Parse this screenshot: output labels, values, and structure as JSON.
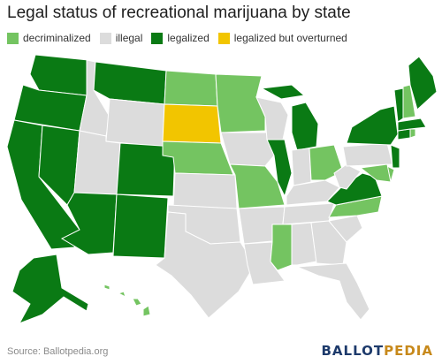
{
  "title": "Legal status of recreational marijuana by state",
  "legend": [
    {
      "label": "decriminalized",
      "color": "#74c461"
    },
    {
      "label": "illegal",
      "color": "#dcdcdc"
    },
    {
      "label": "legalized",
      "color": "#0a7a14"
    },
    {
      "label": "legalized but overturned",
      "color": "#f2c500"
    }
  ],
  "states": {
    "decriminalized": [
      "ND",
      "MN",
      "NE",
      "MO",
      "MS",
      "NC",
      "OH",
      "RI",
      "NH",
      "MD",
      "DE",
      "HI"
    ],
    "illegal": [
      "ID",
      "WY",
      "UT",
      "KS",
      "OK",
      "TX",
      "IA",
      "WI",
      "AR",
      "LA",
      "IN",
      "KY",
      "TN",
      "AL",
      "GA",
      "SC",
      "FL",
      "WV",
      "PA"
    ],
    "legalized": [
      "WA",
      "OR",
      "CA",
      "NV",
      "MT",
      "AZ",
      "CO",
      "NM",
      "IL",
      "MI",
      "VA",
      "NY",
      "NJ",
      "VT",
      "ME",
      "MA",
      "CT",
      "AK"
    ],
    "legalized_but_overturned": [
      "SD"
    ]
  },
  "footer": {
    "source": "Source: Ballotpedia.org",
    "logo_part1": "BALLOT",
    "logo_part2": "PEDIA"
  }
}
